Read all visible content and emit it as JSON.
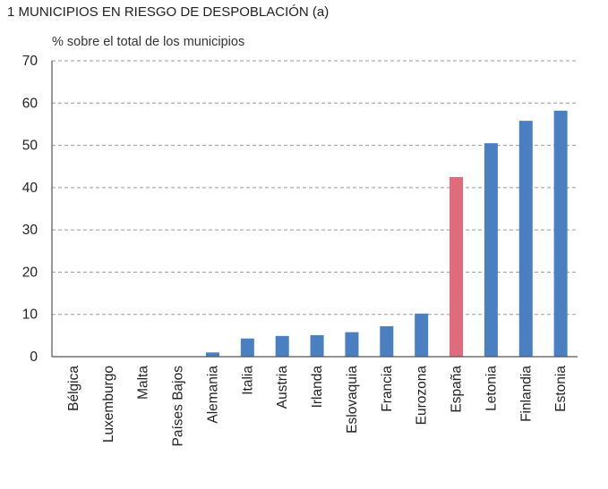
{
  "chart_data": {
    "type": "bar",
    "title": "1  MUNICIPIOS EN RIESGO DE DESPOBLACIÓN (a)",
    "subtitle": "% sobre el total de los municipios",
    "categories": [
      "Bélgica",
      "Luxemburgo",
      "Malta",
      "Países Bajos",
      "Alemania",
      "Italia",
      "Austria",
      "Irlanda",
      "Eslovaquia",
      "Francia",
      "Eurozona",
      "España",
      "Letonia",
      "Finlandia",
      "Estonia"
    ],
    "values": [
      0,
      0,
      0,
      0,
      1.0,
      4.3,
      4.9,
      5.1,
      5.8,
      7.2,
      10.2,
      42.5,
      50.5,
      55.8,
      58.2
    ],
    "ylim": [
      0,
      70
    ],
    "yticks": [
      0,
      10,
      20,
      30,
      40,
      50,
      60,
      70
    ],
    "ytick_labels": [
      "0",
      "10",
      "20",
      "30",
      "40",
      "50",
      "60",
      "70"
    ],
    "grid": true,
    "colors": {
      "default": "#4a7fc1",
      "highlight": "#e06b7d",
      "highlight_category": "España"
    }
  }
}
